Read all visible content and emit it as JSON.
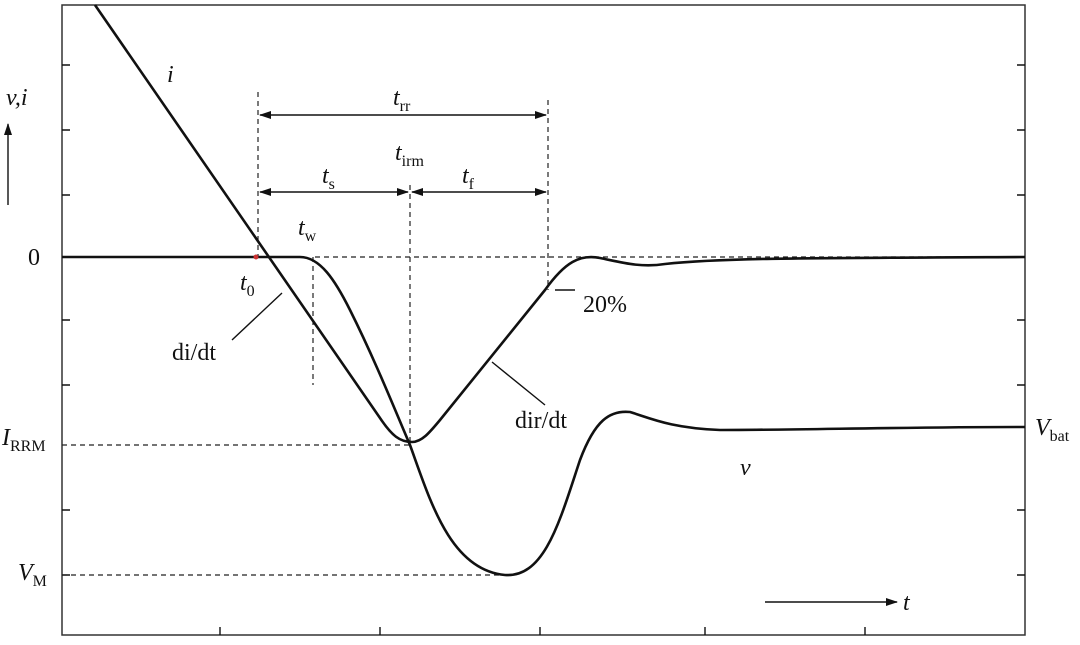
{
  "labels": {
    "axis_vi": "v,i",
    "i": "i",
    "zero": "0",
    "t0": {
      "symbol": "t",
      "subscript": "0"
    },
    "di_dt": "di/dt",
    "irrm": {
      "symbol": "I",
      "subscript": "RRM"
    },
    "vm": {
      "symbol": "V",
      "subscript": "M"
    },
    "trr": {
      "symbol": "t",
      "subscript": "rr"
    },
    "ts": {
      "symbol": "t",
      "subscript": "s"
    },
    "tirm": {
      "symbol": "t",
      "subscript": "irm"
    },
    "tf": {
      "symbol": "t",
      "subscript": "f"
    },
    "tw": {
      "symbol": "t",
      "subscript": "w"
    },
    "pct20": "20%",
    "dir_dt": "dir/dt",
    "vbat": {
      "symbol": "V",
      "subscript": "bat"
    },
    "v": "v",
    "t": "t"
  }
}
